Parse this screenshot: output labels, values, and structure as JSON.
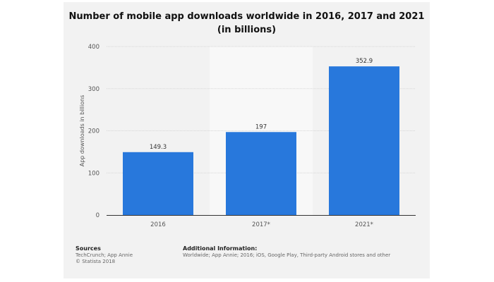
{
  "chart_data": {
    "type": "bar",
    "title_line1": "Number of mobile app downloads worldwide in 2016, 2017 and 2021",
    "title_line2": "(in billions)",
    "categories": [
      "2016",
      "2017*",
      "2021*"
    ],
    "values": [
      149.3,
      197,
      352.9
    ],
    "value_labels": [
      "149.3",
      "197",
      "352.9"
    ],
    "ylabel": "App downloads in billions",
    "xlabel": "",
    "ylim": [
      0,
      400
    ],
    "yticks": [
      0,
      100,
      200,
      300,
      400
    ],
    "ytick_labels": [
      "0",
      "100",
      "200",
      "300",
      "400"
    ],
    "grid": true,
    "bar_color": "#2878dc",
    "highlight_band_color": "#f8f8f8"
  },
  "footer": {
    "sources_heading": "Sources",
    "sources_lines": [
      "TechCrunch; App Annie",
      "© Statista 2018"
    ],
    "info_heading": "Additional Information:",
    "info_lines": [
      "Worldwide; App Annie; 2016; iOS, Google Play, Third-party Android stores and other"
    ]
  }
}
